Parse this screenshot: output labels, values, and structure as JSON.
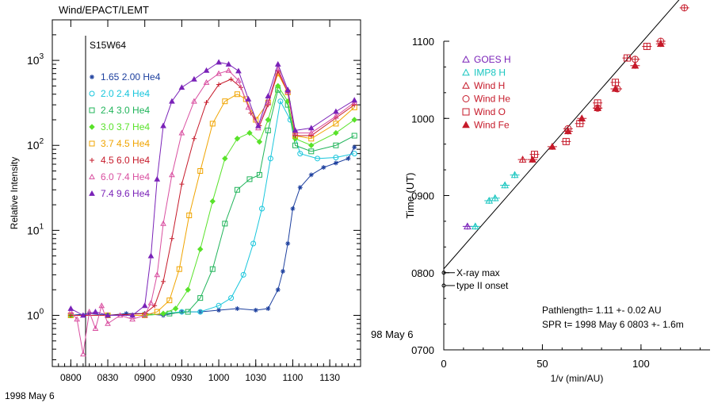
{
  "chart_data": [
    {
      "type": "line",
      "title": "Wind/EPACT/LEMT",
      "annotation": "S15W64",
      "ylabel": "Relative Intensity",
      "xscale": "time",
      "yscale": "log",
      "ylim": [
        0.25,
        3000
      ],
      "y_ticks": [
        {
          "value": 1,
          "base": "10",
          "exp": "0"
        },
        {
          "value": 10,
          "base": "10",
          "exp": "1"
        },
        {
          "value": 100,
          "base": "10",
          "exp": "2"
        },
        {
          "value": 1000,
          "base": "10",
          "exp": "3"
        }
      ],
      "x_ticks": [
        "0800",
        "0830",
        "0900",
        "0930",
        "1000",
        "1030",
        "1100",
        "1130"
      ],
      "x_date": "1998 May 6",
      "flare_marker_time": "0812",
      "series": [
        {
          "name": "1.65 2.00 He4",
          "color": "#1c3f9e",
          "marker": "star",
          "points": [
            [
              "0800",
              1.0
            ],
            [
              "0815",
              1.05
            ],
            [
              "0830",
              1.0
            ],
            [
              "0845",
              1.05
            ],
            [
              "0900",
              1.05
            ],
            [
              "0915",
              1.0
            ],
            [
              "0930",
              1.1
            ],
            [
              "0945",
              1.1
            ],
            [
              "1000",
              1.15
            ],
            [
              "1015",
              1.2
            ],
            [
              "1030",
              1.15
            ],
            [
              "1040",
              1.2
            ],
            [
              "1048",
              2.0
            ],
            [
              "1052",
              3.3
            ],
            [
              "1056",
              7.0
            ],
            [
              "1100",
              18
            ],
            [
              "1106",
              32
            ],
            [
              "1115",
              45
            ],
            [
              "1125",
              55
            ],
            [
              "1135",
              62
            ],
            [
              "1145",
              70
            ],
            [
              "1150",
              95
            ]
          ]
        },
        {
          "name": "2.0 2.4 He4",
          "color": "#19c6dc",
          "marker": "circle",
          "points": [
            [
              "0800",
              1.0
            ],
            [
              "0830",
              1.0
            ],
            [
              "0900",
              1.0
            ],
            [
              "0930",
              1.1
            ],
            [
              "0945",
              1.1
            ],
            [
              "1000",
              1.3
            ],
            [
              "1010",
              1.6
            ],
            [
              "1020",
              3.0
            ],
            [
              "1028",
              7.0
            ],
            [
              "1035",
              18
            ],
            [
              "1042",
              70
            ],
            [
              "1050",
              330
            ],
            [
              "1058",
              200
            ],
            [
              "1106",
              80
            ],
            [
              "1120",
              70
            ],
            [
              "1135",
              72
            ],
            [
              "1150",
              80
            ]
          ]
        },
        {
          "name": "2.4 3.0 He4",
          "color": "#20b45a",
          "marker": "square",
          "points": [
            [
              "0800",
              1.0
            ],
            [
              "0830",
              1.0
            ],
            [
              "0900",
              1.0
            ],
            [
              "0920",
              1.05
            ],
            [
              "0935",
              1.1
            ],
            [
              "0945",
              1.6
            ],
            [
              "0955",
              3.5
            ],
            [
              "1005",
              12
            ],
            [
              "1015",
              30
            ],
            [
              "1025",
              40
            ],
            [
              "1033",
              45
            ],
            [
              "1040",
              150
            ],
            [
              "1048",
              450
            ],
            [
              "1056",
              300
            ],
            [
              "1102",
              100
            ],
            [
              "1115",
              85
            ],
            [
              "1135",
              100
            ],
            [
              "1150",
              130
            ]
          ]
        },
        {
          "name": "3.0 3.7 He4",
          "color": "#59e22a",
          "marker": "diamond",
          "points": [
            [
              "0800",
              1.0
            ],
            [
              "0830",
              1.0
            ],
            [
              "0900",
              1.0
            ],
            [
              "0915",
              1.05
            ],
            [
              "0925",
              1.2
            ],
            [
              "0935",
              2.0
            ],
            [
              "0945",
              6.0
            ],
            [
              "0955",
              22
            ],
            [
              "1005",
              70
            ],
            [
              "1015",
              120
            ],
            [
              "1025",
              140
            ],
            [
              "1033",
              110
            ],
            [
              "1040",
              200
            ],
            [
              "1048",
              500
            ],
            [
              "1056",
              330
            ],
            [
              "1102",
              120
            ],
            [
              "1115",
              100
            ],
            [
              "1135",
              140
            ],
            [
              "1150",
              200
            ]
          ]
        },
        {
          "name": "3.7 4.5 He4",
          "color": "#f0a400",
          "marker": "square",
          "points": [
            [
              "0800",
              1.0
            ],
            [
              "0830",
              1.0
            ],
            [
              "0900",
              1.0
            ],
            [
              "0910",
              1.1
            ],
            [
              "0920",
              1.5
            ],
            [
              "0928",
              3.5
            ],
            [
              "0936",
              15
            ],
            [
              "0945",
              50
            ],
            [
              "0955",
              180
            ],
            [
              "1005",
              330
            ],
            [
              "1015",
              400
            ],
            [
              "1022",
              350
            ],
            [
              "1030",
              200
            ],
            [
              "1040",
              320
            ],
            [
              "1048",
              700
            ],
            [
              "1056",
              420
            ],
            [
              "1102",
              130
            ],
            [
              "1115",
              120
            ],
            [
              "1135",
              180
            ],
            [
              "1150",
              280
            ]
          ]
        },
        {
          "name": "4.5 6.0 He4",
          "color": "#c61a2a",
          "marker": "plus",
          "points": [
            [
              "0800",
              1.0
            ],
            [
              "0830",
              1.0
            ],
            [
              "0900",
              1.05
            ],
            [
              "0908",
              1.3
            ],
            [
              "0915",
              2.5
            ],
            [
              "0922",
              8.0
            ],
            [
              "0930",
              35
            ],
            [
              "0940",
              120
            ],
            [
              "0950",
              320
            ],
            [
              "1000",
              520
            ],
            [
              "1010",
              600
            ],
            [
              "1018",
              480
            ],
            [
              "1026",
              240
            ],
            [
              "1033",
              170
            ],
            [
              "1040",
              300
            ],
            [
              "1048",
              750
            ],
            [
              "1056",
              420
            ],
            [
              "1102",
              130
            ],
            [
              "1115",
              130
            ],
            [
              "1135",
              210
            ],
            [
              "1150",
              300
            ]
          ]
        },
        {
          "name": "6.0 7.4 He4",
          "color": "#d94fa0",
          "marker": "triangle-open",
          "points": [
            [
              "0800",
              1.1
            ],
            [
              "0805",
              0.9
            ],
            [
              "0810",
              0.35
            ],
            [
              "0815",
              1.1
            ],
            [
              "0820",
              0.7
            ],
            [
              "0825",
              1.3
            ],
            [
              "0830",
              0.8
            ],
            [
              "0840",
              1.0
            ],
            [
              "0850",
              0.9
            ],
            [
              "0900",
              1.0
            ],
            [
              "0905",
              1.4
            ],
            [
              "0910",
              3.0
            ],
            [
              "0915",
              12
            ],
            [
              "0922",
              45
            ],
            [
              "0930",
              140
            ],
            [
              "0940",
              330
            ],
            [
              "0950",
              550
            ],
            [
              "1000",
              700
            ],
            [
              "1008",
              760
            ],
            [
              "1016",
              580
            ],
            [
              "1024",
              280
            ],
            [
              "1032",
              160
            ],
            [
              "1040",
              320
            ],
            [
              "1048",
              800
            ],
            [
              "1056",
              430
            ],
            [
              "1102",
              140
            ],
            [
              "1115",
              140
            ],
            [
              "1135",
              220
            ],
            [
              "1150",
              320
            ]
          ]
        },
        {
          "name": "7.4 9.6 He4",
          "color": "#7a22b8",
          "marker": "triangle",
          "points": [
            [
              "0800",
              1.2
            ],
            [
              "0810",
              1.0
            ],
            [
              "0820",
              1.1
            ],
            [
              "0830",
              1.0
            ],
            [
              "0850",
              1.0
            ],
            [
              "0900",
              1.3
            ],
            [
              "0905",
              5.0
            ],
            [
              "0910",
              40
            ],
            [
              "0915",
              170
            ],
            [
              "0922",
              330
            ],
            [
              "0930",
              480
            ],
            [
              "0940",
              600
            ],
            [
              "0950",
              760
            ],
            [
              "1000",
              950
            ],
            [
              "1008",
              900
            ],
            [
              "1016",
              750
            ],
            [
              "1024",
              350
            ],
            [
              "1032",
              170
            ],
            [
              "1040",
              380
            ],
            [
              "1048",
              900
            ],
            [
              "1056",
              450
            ],
            [
              "1102",
              150
            ],
            [
              "1115",
              160
            ],
            [
              "1135",
              250
            ],
            [
              "1150",
              340
            ]
          ]
        }
      ]
    },
    {
      "type": "scatter",
      "ylabel": "Time (UT)",
      "xlabel": "1/v (min/AU)",
      "xlim": [
        0,
        135
      ],
      "ylim_minutes": [
        420,
        660
      ],
      "x_ticks": [
        "0",
        "50",
        "100"
      ],
      "y_ticks": [
        "0700",
        "0800",
        "0900",
        "1000",
        "1100"
      ],
      "corner_label": "98 May 6",
      "annotations": {
        "xray": "X-ray max",
        "typeii": "type II onset",
        "xray_time": "0800",
        "typeii_time": "0750"
      },
      "fit": {
        "intercept_time": "0803",
        "pathlength_AU": 1.11,
        "text1": "Pathlength= 1.11 +- 0.02 AU",
        "text2": "SPR t= 1998 May 6 0803 +- 1.6m"
      },
      "legend": [
        {
          "name": "GOES H",
          "color": "#7a22b8",
          "marker": "triangle-open"
        },
        {
          "name": "IMP8 H",
          "color": "#19c6c0",
          "marker": "triangle-open"
        },
        {
          "name": "Wind H",
          "color": "#c61a2a",
          "marker": "triangle-open"
        },
        {
          "name": "Wind He",
          "color": "#c61a2a",
          "marker": "circle-open"
        },
        {
          "name": "Wind O",
          "color": "#c61a2a",
          "marker": "square-open"
        },
        {
          "name": "Wind Fe",
          "color": "#c61a2a",
          "marker": "triangle-filled"
        }
      ],
      "series": [
        {
          "name": "GOES H",
          "points": [
            [
              12,
              516
            ]
          ]
        },
        {
          "name": "IMP8 H",
          "points": [
            [
              16,
              516
            ],
            [
              23,
              536
            ],
            [
              26,
              538
            ],
            [
              31,
              548
            ],
            [
              36,
              556
            ]
          ]
        },
        {
          "name": "Wind H",
          "points": [
            [
              40,
              568
            ]
          ]
        },
        {
          "name": "Wind He",
          "points": [
            [
              63,
              592
            ],
            [
              78,
              608
            ],
            [
              88,
              623
            ],
            [
              97,
              646
            ],
            [
              110,
              660
            ],
            [
              122,
              686
            ],
            [
              134,
              718
            ]
          ]
        },
        {
          "name": "Wind O",
          "points": [
            [
              46,
              572
            ],
            [
              62,
              582
            ],
            [
              69,
              596
            ],
            [
              78,
              612
            ],
            [
              87,
              628
            ],
            [
              93,
              647
            ],
            [
              103,
              656
            ]
          ]
        },
        {
          "name": "Wind Fe",
          "points": [
            [
              45,
              568
            ],
            [
              55,
              578
            ],
            [
              63,
              590
            ],
            [
              70,
              600
            ],
            [
              78,
              608
            ],
            [
              87,
              623
            ],
            [
              97,
              641
            ],
            [
              110,
              658
            ]
          ]
        }
      ]
    }
  ]
}
